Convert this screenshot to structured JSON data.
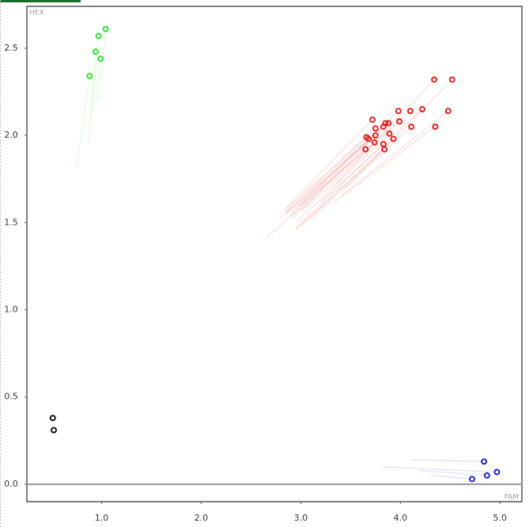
{
  "chart_data": {
    "type": "scatter",
    "x_label": "FAM",
    "y_label": "HEX",
    "xlim": [
      0.25,
      5.22
    ],
    "ylim": [
      -0.1,
      2.74
    ],
    "xticks": [
      {
        "value": 1,
        "label": "1.0"
      },
      {
        "value": 2,
        "label": "2.0"
      },
      {
        "value": 3,
        "label": "3.0"
      },
      {
        "value": 4,
        "label": "4.0"
      },
      {
        "value": 5,
        "label": "5.0"
      }
    ],
    "yticks": [
      {
        "value": 0,
        "label": "0.0"
      },
      {
        "value": 0.5,
        "label": "0.5"
      },
      {
        "value": 1,
        "label": "1.0"
      },
      {
        "value": 1.5,
        "label": "1.5"
      },
      {
        "value": 2,
        "label": "2.0"
      },
      {
        "value": 2.5,
        "label": "2.5"
      }
    ],
    "series": [
      {
        "color": "#33dd33",
        "x": [
          0.88,
          0.94,
          0.97,
          0.99,
          1.04
        ],
        "values": [
          2.34,
          2.48,
          2.57,
          2.44,
          2.61
        ],
        "trail_x": [
          0.75,
          0.87,
          0.9,
          0.95,
          1.0
        ],
        "trail_y": [
          1.82,
          1.96,
          2.1,
          2.2,
          2.3
        ]
      },
      {
        "color": "#dd2222",
        "x": [
          4.34,
          4.52,
          3.72,
          4.22,
          4.48,
          4.1,
          3.98,
          3.85,
          3.66,
          3.75,
          3.83,
          3.88,
          3.99,
          3.68,
          3.75,
          3.74,
          3.89,
          3.93,
          3.65,
          3.83,
          3.84,
          4.11,
          4.35
        ],
        "values": [
          2.32,
          2.32,
          2.09,
          2.15,
          2.14,
          2.14,
          2.14,
          2.07,
          1.99,
          2.04,
          2.05,
          2.07,
          2.08,
          1.98,
          2.0,
          1.96,
          2.01,
          1.98,
          1.92,
          1.95,
          1.92,
          2.05,
          2.05
        ],
        "trail_x": [
          3.35,
          3.45,
          2.85,
          3.2,
          3.4,
          3.0,
          2.95,
          2.9,
          2.8,
          2.85,
          2.9,
          3.0,
          3.05,
          2.8,
          2.85,
          2.9,
          2.95,
          3.0,
          2.65,
          2.95,
          2.95,
          3.1,
          3.3
        ],
        "trail_y": [
          1.72,
          1.7,
          1.58,
          1.62,
          1.65,
          1.6,
          1.58,
          1.56,
          1.55,
          1.56,
          1.54,
          1.57,
          1.58,
          1.53,
          1.55,
          1.52,
          1.5,
          1.48,
          1.41,
          1.47,
          1.46,
          1.52,
          1.6
        ]
      },
      {
        "color": "#2222cc",
        "x": [
          4.84,
          4.97,
          4.87,
          4.72
        ],
        "values": [
          0.13,
          0.07,
          0.05,
          0.03
        ],
        "trail_x": [
          4.1,
          3.81,
          4.19,
          4.3
        ],
        "trail_y": [
          0.14,
          0.1,
          0.08,
          0.05
        ]
      },
      {
        "color": "#111111",
        "x": [
          0.51,
          0.52
        ],
        "values": [
          0.38,
          0.31
        ]
      }
    ]
  }
}
